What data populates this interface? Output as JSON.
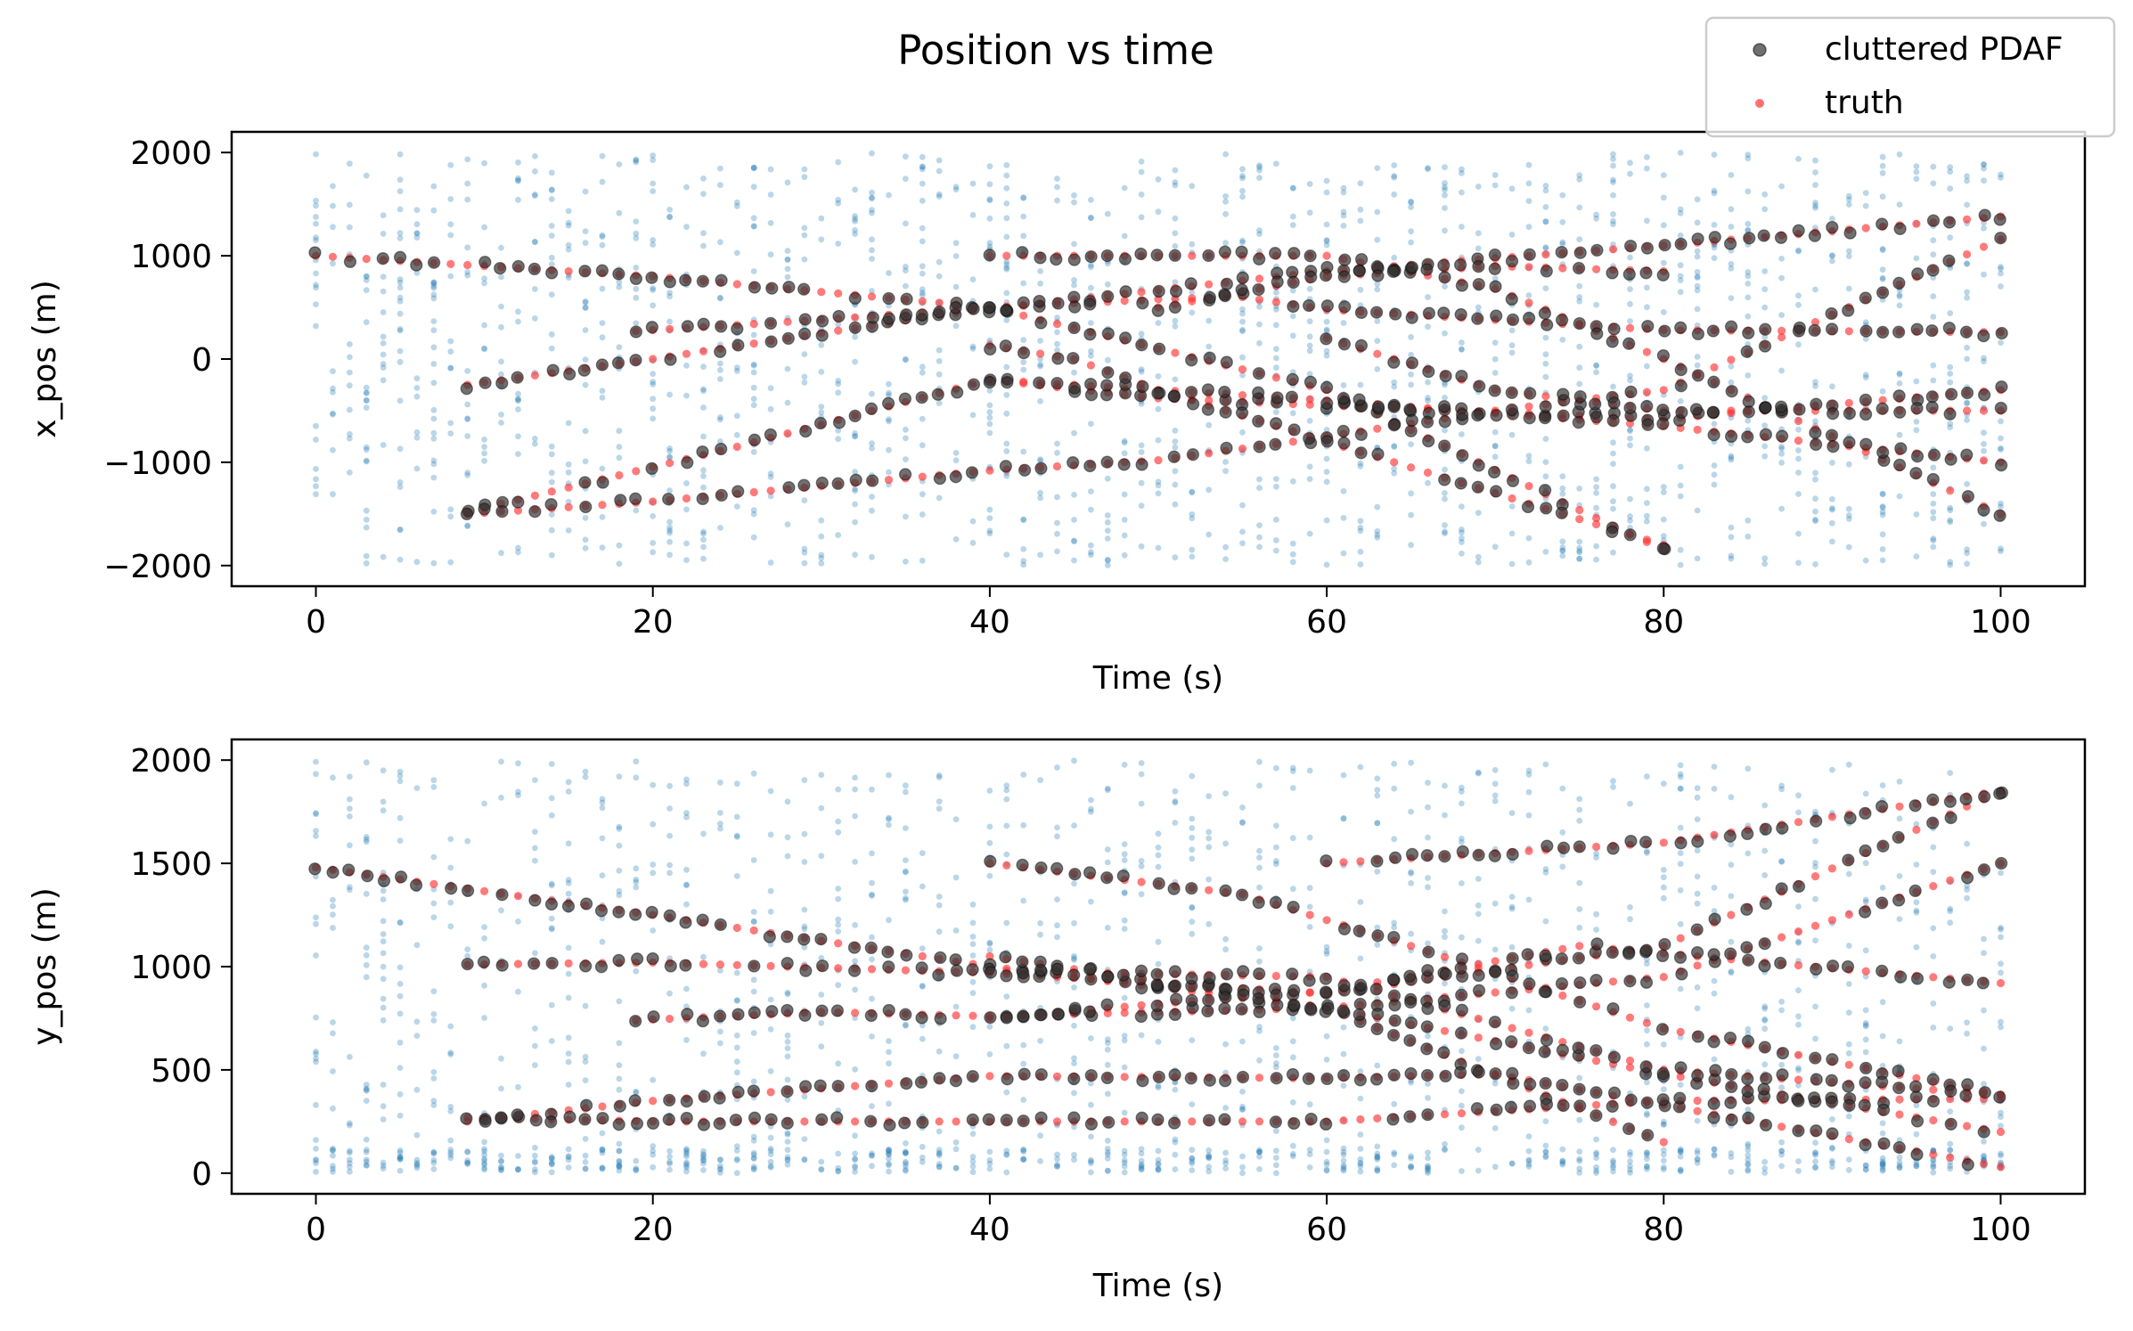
{
  "figure": {
    "title": "Position vs time",
    "legend": {
      "placement": "top-right",
      "entries": [
        {
          "label": "cluttered PDAF",
          "color": "#333333"
        },
        {
          "label": "truth",
          "color": "#ff3333"
        }
      ]
    }
  },
  "colors": {
    "clutter": "#1f77b4",
    "estimate": "#333333",
    "truth": "#ff3333"
  },
  "chart_data": [
    {
      "type": "scatter",
      "xlabel": "Time (s)",
      "ylabel": "x_pos (m)",
      "xlim": [
        -5,
        105
      ],
      "ylim": [
        -2200,
        2200
      ],
      "xticks": [
        0,
        20,
        40,
        60,
        80,
        100
      ],
      "yticks": [
        -2000,
        -1000,
        0,
        1000,
        2000
      ],
      "ytick_labels": [
        "−2000",
        "−1000",
        "0",
        "1000",
        "2000"
      ],
      "grid": false,
      "tracks": [
        {
          "t": [
            0,
            20,
            40,
            60,
            80
          ],
          "v": [
            1000,
            800,
            500,
            -300,
            -1850
          ]
        },
        {
          "t": [
            9,
            20,
            38,
            60,
            80,
            100
          ],
          "v": [
            -250,
            0,
            450,
            850,
            1100,
            1380
          ]
        },
        {
          "t": [
            9,
            25,
            40,
            50,
            60,
            80,
            100
          ],
          "v": [
            -1480,
            -850,
            -200,
            -380,
            -450,
            -580,
            -300
          ]
        },
        {
          "t": [
            9,
            20,
            40,
            50,
            58,
            70,
            80,
            100
          ],
          "v": [
            -1500,
            -1380,
            -1080,
            -980,
            -800,
            -500,
            -300,
            1160
          ]
        },
        {
          "t": [
            19,
            30,
            40,
            50,
            55,
            60,
            80,
            100
          ],
          "v": [
            270,
            380,
            500,
            580,
            600,
            480,
            280,
            260
          ]
        },
        {
          "t": [
            40,
            60,
            70,
            80,
            100
          ],
          "v": [
            1000,
            1000,
            680,
            0,
            -1500
          ]
        },
        {
          "t": [
            40,
            60,
            80,
            100
          ],
          "v": [
            -200,
            -400,
            -650,
            -1000
          ]
        },
        {
          "t": [
            40,
            45,
            50,
            60,
            80
          ],
          "v": [
            130,
            0,
            -300,
            -800,
            -1800
          ]
        },
        {
          "t": [
            60,
            70,
            80,
            100
          ],
          "v": [
            200,
            -300,
            -500,
            -500
          ]
        },
        {
          "t": [
            50,
            60,
            70,
            80
          ],
          "v": [
            500,
            800,
            900,
            850
          ]
        }
      ],
      "clutter_range": [
        -2000,
        2000
      ]
    },
    {
      "type": "scatter",
      "xlabel": "Time (s)",
      "ylabel": "y_pos (m)",
      "xlim": [
        -5,
        105
      ],
      "ylim": [
        -100,
        2100
      ],
      "xticks": [
        0,
        20,
        40,
        60,
        80,
        100
      ],
      "yticks": [
        0,
        500,
        1000,
        1500,
        2000
      ],
      "ytick_labels": [
        "0",
        "500",
        "1000",
        "1500",
        "2000"
      ],
      "grid": false,
      "tracks": [
        {
          "t": [
            0,
            20,
            40,
            60,
            80
          ],
          "v": [
            1480,
            1250,
            1000,
            800,
            150
          ]
        },
        {
          "t": [
            9,
            20,
            40,
            60,
            80,
            100
          ],
          "v": [
            1010,
            1020,
            970,
            870,
            1100,
            1850
          ]
        },
        {
          "t": [
            9,
            20,
            40,
            60,
            70,
            100
          ],
          "v": [
            250,
            350,
            470,
            460,
            480,
            30
          ]
        },
        {
          "t": [
            9,
            20,
            40,
            60,
            80,
            100
          ],
          "v": [
            270,
            250,
            250,
            250,
            350,
            360
          ]
        },
        {
          "t": [
            19,
            30,
            40,
            60,
            80,
            100
          ],
          "v": [
            740,
            780,
            760,
            800,
            950,
            1500
          ]
        },
        {
          "t": [
            40,
            55,
            65,
            80,
            100
          ],
          "v": [
            1500,
            1350,
            1100,
            700,
            380
          ]
        },
        {
          "t": [
            40,
            60,
            80,
            100
          ],
          "v": [
            1050,
            800,
            480,
            200
          ]
        },
        {
          "t": [
            60,
            80,
            100
          ],
          "v": [
            1500,
            1600,
            1850
          ]
        },
        {
          "t": [
            40,
            50,
            60,
            75,
            100
          ],
          "v": [
            750,
            820,
            880,
            1100,
            920
          ]
        },
        {
          "t": [
            40,
            60,
            80,
            100
          ],
          "v": [
            980,
            950,
            500,
            380
          ]
        }
      ],
      "clutter_range": [
        0,
        2000
      ]
    }
  ]
}
